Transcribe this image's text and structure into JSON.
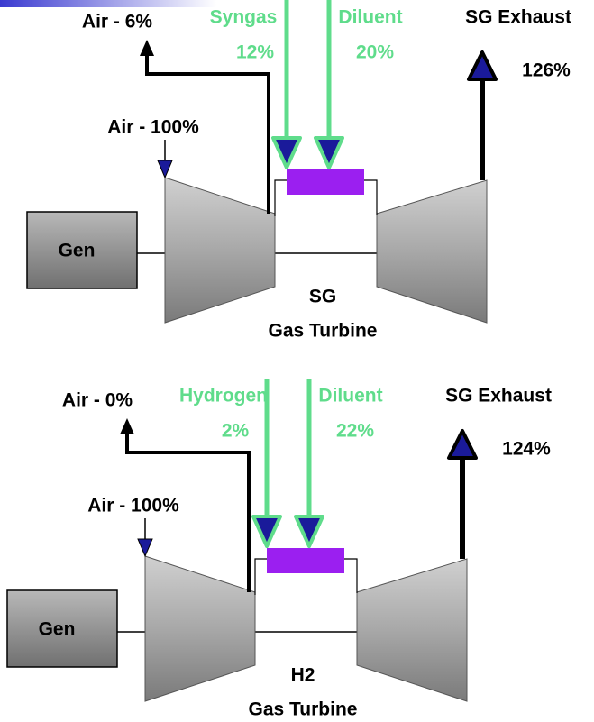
{
  "diagrams": [
    {
      "air_out": "Air - 6%",
      "fuel": "Syngas",
      "fuel_pct": "12%",
      "diluent": "Diluent",
      "diluent_pct": "20%",
      "exhaust": "SG Exhaust",
      "exhaust_pct": "126%",
      "air_in": "Air - 100%",
      "generator": "Gen",
      "name": "SG",
      "subtitle": "Gas Turbine"
    },
    {
      "air_out": "Air - 0%",
      "fuel": "Hydrogen",
      "fuel_pct": "2%",
      "diluent": "Diluent",
      "diluent_pct": "22%",
      "exhaust": "SG Exhaust",
      "exhaust_pct": "124%",
      "air_in": "Air - 100%",
      "generator": "Gen",
      "name": "H2",
      "subtitle": "Gas Turbine"
    }
  ]
}
